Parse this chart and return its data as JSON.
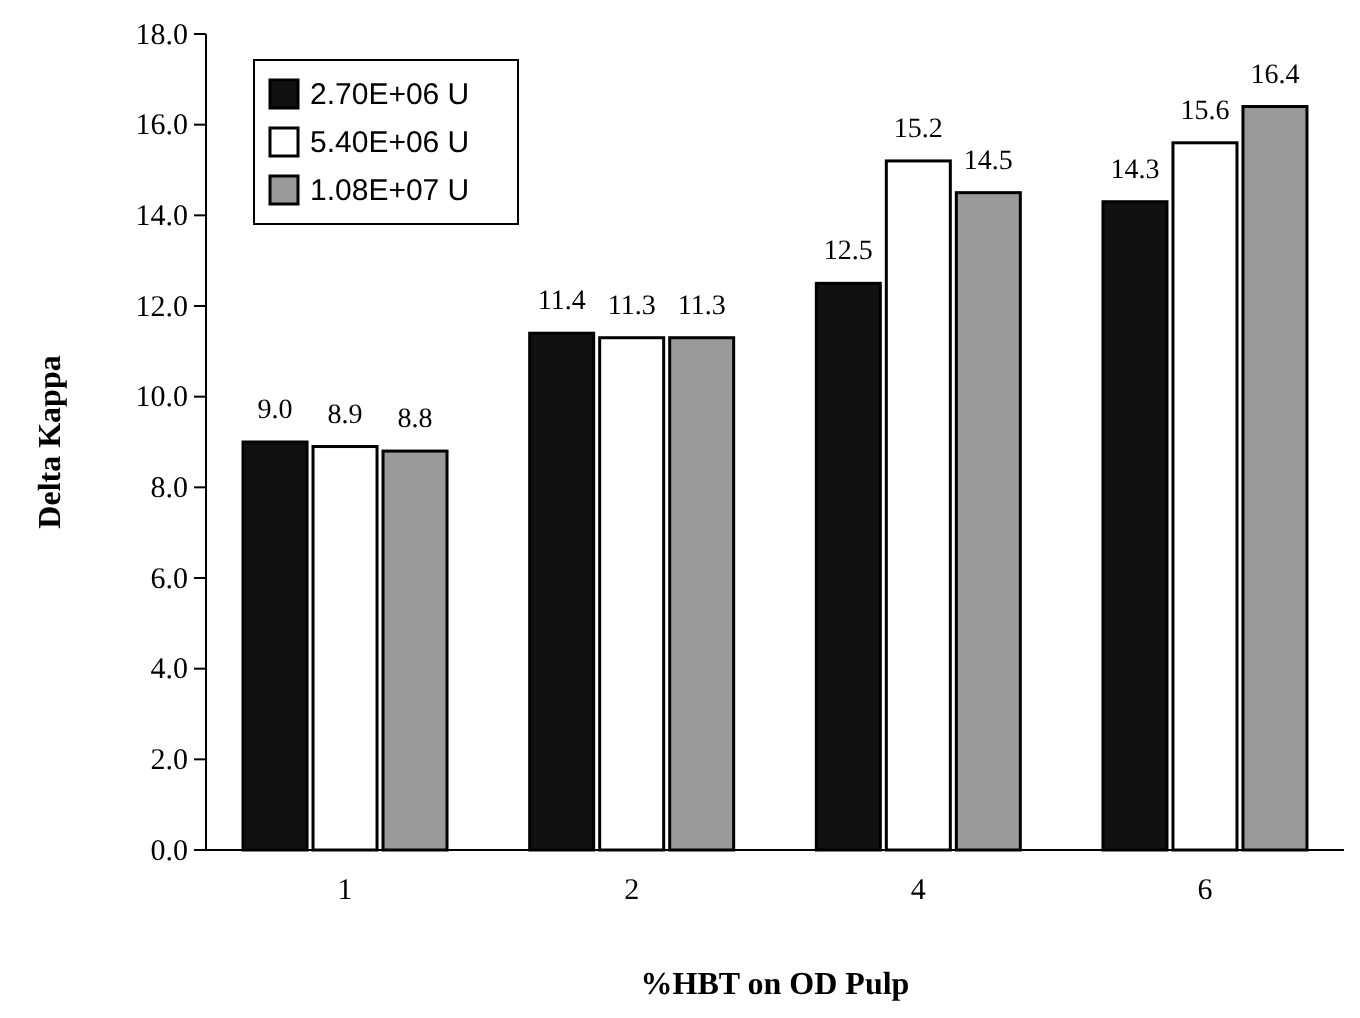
{
  "chart_data": {
    "type": "bar",
    "xlabel": "%HBT on OD Pulp",
    "ylabel": "Delta Kappa",
    "categories": [
      "1",
      "2",
      "4",
      "6"
    ],
    "series": [
      {
        "name": "2.70E+06 U",
        "color": "#111111",
        "values": [
          9.0,
          11.4,
          12.5,
          14.3
        ],
        "value_labels": [
          "9.0",
          "11.4",
          "12.5",
          "14.3"
        ]
      },
      {
        "name": "5.40E+06 U",
        "color": "#ffffff",
        "values": [
          8.9,
          11.3,
          15.2,
          15.6
        ],
        "value_labels": [
          "8.9",
          "11.3",
          "15.2",
          "15.6"
        ]
      },
      {
        "name": "1.08E+07 U",
        "color": "#9a9a9a",
        "values": [
          8.8,
          11.3,
          14.5,
          16.4
        ],
        "value_labels": [
          "8.8",
          "11.3",
          "14.5",
          "16.4"
        ]
      }
    ],
    "ylim": [
      0,
      18
    ],
    "yticks": [
      {
        "value": 0,
        "label": "0.0"
      },
      {
        "value": 2,
        "label": "2.0"
      },
      {
        "value": 4,
        "label": "4.0"
      },
      {
        "value": 6,
        "label": "6.0"
      },
      {
        "value": 8,
        "label": "8.0"
      },
      {
        "value": 10,
        "label": "10.0"
      },
      {
        "value": 12,
        "label": "12.0"
      },
      {
        "value": 14,
        "label": "14.0"
      },
      {
        "value": 16,
        "label": "16.0"
      },
      {
        "value": 18,
        "label": "18.0"
      }
    ],
    "legend": "top left",
    "grid": false
  }
}
